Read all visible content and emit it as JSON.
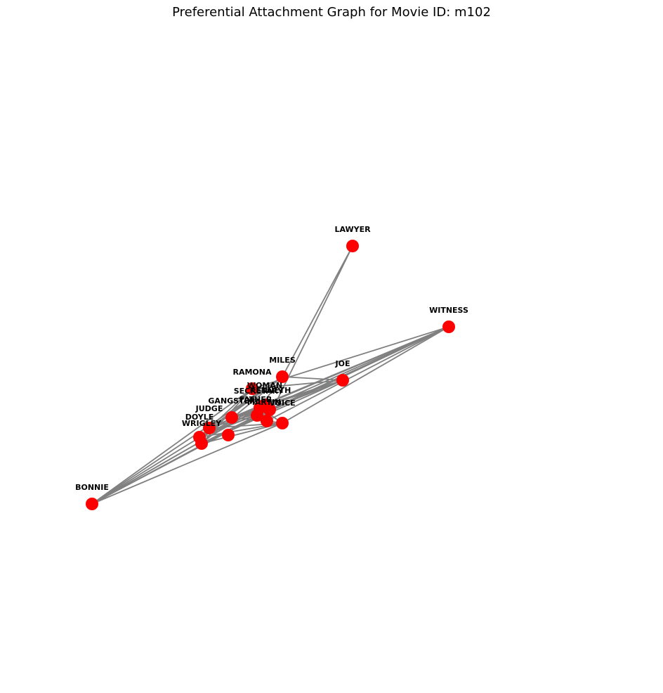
{
  "title": "Preferential Attachment Graph for Movie ID: m102",
  "graph": {
    "type": "network",
    "node_color": "#ff0000",
    "edge_color": "#808080",
    "nodes": [
      {
        "id": "LAWYER",
        "label": "LAWYER"
      },
      {
        "id": "WITNESS",
        "label": "WITNESS"
      },
      {
        "id": "MILES",
        "label": "MILES"
      },
      {
        "id": "JOE",
        "label": "JOE"
      },
      {
        "id": "RAMONA",
        "label": "RAMONA"
      },
      {
        "id": "WOMAN",
        "label": "WOMAN"
      },
      {
        "id": "KENNETH",
        "label": "KENNETH"
      },
      {
        "id": "SECRETARY",
        "label": "SECRETARY"
      },
      {
        "id": "GANGSTER",
        "label": "GANGSTER"
      },
      {
        "id": "FATHER",
        "label": "FATHER"
      },
      {
        "id": "VOICE",
        "label": "VOICE"
      },
      {
        "id": "JUDGE",
        "label": "JUDGE"
      },
      {
        "id": "DOYLE",
        "label": "DOYLE"
      },
      {
        "id": "MARTIN",
        "label": "MARTIN"
      },
      {
        "id": "WRIGLEY",
        "label": "WRIGLEY"
      },
      {
        "id": "BONNIE",
        "label": "BONNIE"
      }
    ],
    "edges": [
      [
        "LAWYER",
        "MILES"
      ],
      [
        "LAWYER",
        "MARTIN"
      ],
      [
        "WITNESS",
        "RAMONA"
      ],
      [
        "WITNESS",
        "GANGSTER"
      ],
      [
        "WITNESS",
        "FATHER"
      ],
      [
        "WITNESS",
        "JUDGE"
      ],
      [
        "WITNESS",
        "DOYLE"
      ],
      [
        "WITNESS",
        "WRIGLEY"
      ],
      [
        "WITNESS",
        "MARTIN"
      ],
      [
        "WITNESS",
        "VOICE"
      ],
      [
        "WITNESS",
        "KENNETH"
      ],
      [
        "JOE",
        "MILES"
      ],
      [
        "JOE",
        "RAMONA"
      ],
      [
        "JOE",
        "DOYLE"
      ],
      [
        "JOE",
        "WRIGLEY"
      ],
      [
        "JOE",
        "GANGSTER"
      ],
      [
        "JOE",
        "WOMAN"
      ],
      [
        "BONNIE",
        "MILES"
      ],
      [
        "BONNIE",
        "RAMONA"
      ],
      [
        "BONNIE",
        "WOMAN"
      ],
      [
        "BONNIE",
        "KENNETH"
      ],
      [
        "BONNIE",
        "SECRETARY"
      ],
      [
        "BONNIE",
        "FATHER"
      ],
      [
        "BONNIE",
        "VOICE"
      ],
      [
        "BONNIE",
        "GANGSTER"
      ],
      [
        "MILES",
        "DOYLE"
      ],
      [
        "MILES",
        "JUDGE"
      ],
      [
        "MILES",
        "WRIGLEY"
      ],
      [
        "MILES",
        "SECRETARY"
      ],
      [
        "RAMONA",
        "WRIGLEY"
      ],
      [
        "RAMONA",
        "DOYLE"
      ],
      [
        "RAMONA",
        "FATHER"
      ],
      [
        "JUDGE",
        "VOICE"
      ],
      [
        "JUDGE",
        "SECRETARY"
      ],
      [
        "JUDGE",
        "KENNETH"
      ],
      [
        "DOYLE",
        "VOICE"
      ],
      [
        "DOYLE",
        "KENNETH"
      ],
      [
        "DOYLE",
        "WOMAN"
      ],
      [
        "WRIGLEY",
        "VOICE"
      ],
      [
        "WRIGLEY",
        "FATHER"
      ],
      [
        "WRIGLEY",
        "KENNETH"
      ],
      [
        "MARTIN",
        "VOICE"
      ],
      [
        "MARTIN",
        "SECRETARY"
      ],
      [
        "MARTIN",
        "WOMAN"
      ],
      [
        "GANGSTER",
        "VOICE"
      ],
      [
        "GANGSTER",
        "KENNETH"
      ],
      [
        "GANGSTER",
        "MARTIN"
      ],
      [
        "FATHER",
        "KENNETH"
      ],
      [
        "WOMAN",
        "SECRETARY"
      ],
      [
        "SECRETARY",
        "VOICE"
      ]
    ]
  }
}
